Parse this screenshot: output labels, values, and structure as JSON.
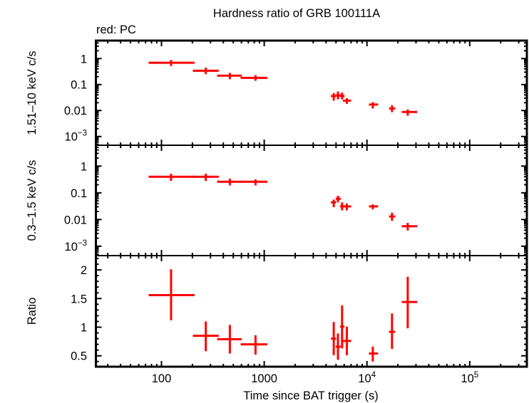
{
  "chart_data": {
    "type": "scatter",
    "title": "Hardness ratio of GRB 100111A",
    "legend": {
      "text": "red: PC",
      "placement": "top-left",
      "color": "#ff0000"
    },
    "series_color": "#ff0000",
    "x_axis": {
      "label": "Time since BAT trigger (s)",
      "scale": "log",
      "range": [
        23,
        360000
      ],
      "ticks": [
        100,
        1000,
        10000,
        100000
      ],
      "tick_labels": [
        "100",
        "1000",
        "10^4",
        "10^5"
      ]
    },
    "bins": [
      {
        "x": 124,
        "xlo": 75,
        "xhi": 210
      },
      {
        "x": 270,
        "xlo": 202,
        "xhi": 361
      },
      {
        "x": 463,
        "xlo": 348,
        "xhi": 605
      },
      {
        "x": 823,
        "xlo": 589,
        "xhi": 1074
      },
      {
        "x": 4750,
        "xlo": 4460,
        "xhi": 5015
      },
      {
        "x": 5220,
        "xlo": 4960,
        "xhi": 5570
      },
      {
        "x": 5725,
        "xlo": 5480,
        "xhi": 6040
      },
      {
        "x": 6370,
        "xlo": 5820,
        "xhi": 7015
      },
      {
        "x": 11400,
        "xlo": 10450,
        "xhi": 12850
      },
      {
        "x": 17530,
        "xlo": 16390,
        "xhi": 18830
      },
      {
        "x": 24930,
        "xlo": 21830,
        "xhi": 30830
      }
    ],
    "panels": [
      {
        "name": "hard-band",
        "ylabel": "1.51–10 keV c/s",
        "scale": "log",
        "ylim": [
          0.00046,
          4.93
        ],
        "ticks": [
          1,
          0.1,
          0.01,
          0.001
        ],
        "tick_labels": [
          "1",
          "0.1",
          "0.01",
          "10^−3"
        ],
        "values": [
          {
            "y": 0.69,
            "ylo": 0.52,
            "yhi": 0.88
          },
          {
            "y": 0.34,
            "ylo": 0.25,
            "yhi": 0.45
          },
          {
            "y": 0.22,
            "ylo": 0.16,
            "yhi": 0.28
          },
          {
            "y": 0.18,
            "ylo": 0.14,
            "yhi": 0.23
          },
          {
            "y": 0.036,
            "ylo": 0.024,
            "yhi": 0.047
          },
          {
            "y": 0.038,
            "ylo": 0.027,
            "yhi": 0.054
          },
          {
            "y": 0.036,
            "ylo": 0.027,
            "yhi": 0.049
          },
          {
            "y": 0.024,
            "ylo": 0.018,
            "yhi": 0.03
          },
          {
            "y": 0.017,
            "ylo": 0.012,
            "yhi": 0.021
          },
          {
            "y": 0.012,
            "ylo": 0.0086,
            "yhi": 0.016
          },
          {
            "y": 0.0088,
            "ylo": 0.0063,
            "yhi": 0.011
          }
        ]
      },
      {
        "name": "soft-band",
        "ylabel": "0.3–1.5 keV c/s",
        "scale": "log",
        "ylim": [
          0.000445,
          6.04
        ],
        "ticks": [
          1,
          0.1,
          0.01,
          0.001
        ],
        "tick_labels": [
          "1",
          "0.1",
          "0.01",
          "10^−3"
        ],
        "values": [
          {
            "y": 0.4,
            "ylo": 0.28,
            "yhi": 0.52
          },
          {
            "y": 0.4,
            "ylo": 0.28,
            "yhi": 0.52
          },
          {
            "y": 0.26,
            "ylo": 0.19,
            "yhi": 0.34
          },
          {
            "y": 0.26,
            "ylo": 0.19,
            "yhi": 0.32
          },
          {
            "y": 0.044,
            "ylo": 0.029,
            "yhi": 0.056
          },
          {
            "y": 0.06,
            "ylo": 0.044,
            "yhi": 0.077
          },
          {
            "y": 0.031,
            "ylo": 0.022,
            "yhi": 0.044
          },
          {
            "y": 0.031,
            "ylo": 0.022,
            "yhi": 0.04
          },
          {
            "y": 0.031,
            "ylo": 0.024,
            "yhi": 0.037
          },
          {
            "y": 0.013,
            "ylo": 0.0089,
            "yhi": 0.018
          },
          {
            "y": 0.0056,
            "ylo": 0.0039,
            "yhi": 0.0075
          }
        ]
      },
      {
        "name": "ratio",
        "ylabel": "Ratio",
        "scale": "linear",
        "ylim": [
          0.31,
          2.25
        ],
        "ticks": [
          2,
          1.5,
          1,
          0.5
        ],
        "tick_labels": [
          "2",
          "1.5",
          "1",
          "0.5"
        ],
        "minor_step": 0.1,
        "values": [
          {
            "y": 1.56,
            "ylo": 1.12,
            "yhi": 2.01
          },
          {
            "y": 0.85,
            "ylo": 0.58,
            "yhi": 1.1
          },
          {
            "y": 0.79,
            "ylo": 0.54,
            "yhi": 1.04
          },
          {
            "y": 0.7,
            "ylo": 0.52,
            "yhi": 0.86
          },
          {
            "y": 0.8,
            "ylo": 0.51,
            "yhi": 1.09
          },
          {
            "y": 0.66,
            "ylo": 0.43,
            "yhi": 0.89
          },
          {
            "y": 1.01,
            "ylo": 0.63,
            "yhi": 1.38
          },
          {
            "y": 0.76,
            "ylo": 0.51,
            "yhi": 1.01
          },
          {
            "y": 0.54,
            "ylo": 0.4,
            "yhi": 0.66
          },
          {
            "y": 0.92,
            "ylo": 0.62,
            "yhi": 1.24
          },
          {
            "y": 1.44,
            "ylo": 0.98,
            "yhi": 1.88
          }
        ]
      }
    ]
  }
}
